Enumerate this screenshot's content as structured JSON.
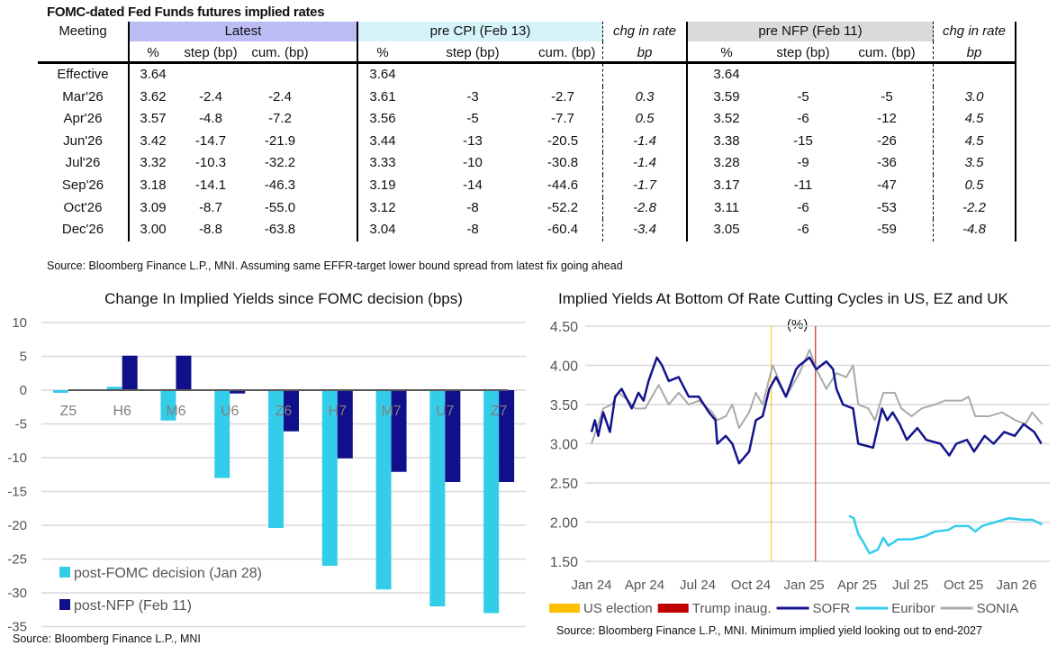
{
  "table": {
    "title": "FOMC-dated Fed Funds futures implied rates",
    "meeting_header": "Meeting",
    "group_latest": "Latest",
    "group_pre_cpi": "pre CPI (Feb 13)",
    "group_pre_nfp": "pre NFP (Feb 11)",
    "chg_header": "chg in rate",
    "chg_unit": "bp",
    "sub_pct": "%",
    "sub_step": "step (bp)",
    "sub_cum": "cum. (bp)",
    "rows": [
      {
        "meeting": "Effective",
        "l_pct": "3.64",
        "l_step": "",
        "l_cum": "",
        "c_pct": "3.64",
        "c_step": "",
        "c_cum": "",
        "c_chg": "",
        "n_pct": "3.64",
        "n_step": "",
        "n_cum": "",
        "n_chg": ""
      },
      {
        "meeting": "Mar'26",
        "l_pct": "3.62",
        "l_step": "-2.4",
        "l_cum": "-2.4",
        "c_pct": "3.61",
        "c_step": "-3",
        "c_cum": "-2.7",
        "c_chg": "0.3",
        "n_pct": "3.59",
        "n_step": "-5",
        "n_cum": "-5",
        "n_chg": "3.0"
      },
      {
        "meeting": "Apr'26",
        "l_pct": "3.57",
        "l_step": "-4.8",
        "l_cum": "-7.2",
        "c_pct": "3.56",
        "c_step": "-5",
        "c_cum": "-7.7",
        "c_chg": "0.5",
        "n_pct": "3.52",
        "n_step": "-6",
        "n_cum": "-12",
        "n_chg": "4.5"
      },
      {
        "meeting": "Jun'26",
        "l_pct": "3.42",
        "l_step": "-14.7",
        "l_cum": "-21.9",
        "c_pct": "3.44",
        "c_step": "-13",
        "c_cum": "-20.5",
        "c_chg": "-1.4",
        "n_pct": "3.38",
        "n_step": "-15",
        "n_cum": "-26",
        "n_chg": "4.5"
      },
      {
        "meeting": "Jul'26",
        "l_pct": "3.32",
        "l_step": "-10.3",
        "l_cum": "-32.2",
        "c_pct": "3.33",
        "c_step": "-10",
        "c_cum": "-30.8",
        "c_chg": "-1.4",
        "n_pct": "3.28",
        "n_step": "-9",
        "n_cum": "-36",
        "n_chg": "3.5"
      },
      {
        "meeting": "Sep'26",
        "l_pct": "3.18",
        "l_step": "-14.1",
        "l_cum": "-46.3",
        "c_pct": "3.19",
        "c_step": "-14",
        "c_cum": "-44.6",
        "c_chg": "-1.7",
        "n_pct": "3.17",
        "n_step": "-11",
        "n_cum": "-47",
        "n_chg": "0.5"
      },
      {
        "meeting": "Oct'26",
        "l_pct": "3.09",
        "l_step": "-8.7",
        "l_cum": "-55.0",
        "c_pct": "3.12",
        "c_step": "-8",
        "c_cum": "-52.2",
        "c_chg": "-2.8",
        "n_pct": "3.11",
        "n_step": "-6",
        "n_cum": "-53",
        "n_chg": "-2.2"
      },
      {
        "meeting": "Dec'26",
        "l_pct": "3.00",
        "l_step": "-8.8",
        "l_cum": "-63.8",
        "c_pct": "3.04",
        "c_step": "-8",
        "c_cum": "-60.4",
        "c_chg": "-3.4",
        "n_pct": "3.05",
        "n_step": "-6",
        "n_cum": "-59",
        "n_chg": "-4.8"
      }
    ],
    "source": "Source: Bloomberg Finance L.P., MNI. Assuming same  EFFR-target lower bound spread from latest fix going ahead",
    "colors": {
      "latest": "#bcbcf4",
      "pre_cpi": "#d5f3f9",
      "pre_nfp": "#dadada"
    }
  },
  "chart_data": [
    {
      "type": "bar",
      "title": "Change In Implied Yields since FOMC decision (bps)",
      "categories": [
        "Z5",
        "H6",
        "M6",
        "U6",
        "Z6",
        "H7",
        "M7",
        "U7",
        "Z7"
      ],
      "series": [
        {
          "name": "post-FOMC decision (Jan 28)",
          "color": "#33cdea",
          "values": [
            -0.4,
            0.5,
            -4.5,
            -13.0,
            -20.4,
            -26.0,
            -29.5,
            -32.0,
            -33.0
          ]
        },
        {
          "name": "post-NFP (Feb 11)",
          "color": "#10108a",
          "values": [
            0,
            5.1,
            5.1,
            -0.5,
            -6.1,
            -10.1,
            -12.1,
            -13.6,
            -13.6
          ]
        }
      ],
      "ylim": [
        -35,
        10
      ],
      "yticks": [
        10,
        5,
        0,
        -5,
        -10,
        -15,
        -20,
        -25,
        -30,
        -35
      ],
      "grid": true,
      "legend": "bottom-left",
      "source": "Source: Bloomberg Finance L.P., MNI"
    },
    {
      "type": "line",
      "title": "Implied Yields At Bottom Of Rate Cutting Cycles in US, EZ and UK",
      "subtitle": "(%)",
      "x_unit": "months since Jan 24",
      "xlim": [
        0,
        25.5
      ],
      "xticks": [
        {
          "m": 0,
          "label": "Jan 24"
        },
        {
          "m": 3,
          "label": "Apr 24"
        },
        {
          "m": 6,
          "label": "Jul 24"
        },
        {
          "m": 9,
          "label": "Oct 24"
        },
        {
          "m": 12,
          "label": "Jan 25"
        },
        {
          "m": 15,
          "label": "Apr 25"
        },
        {
          "m": 18,
          "label": "Jul 25"
        },
        {
          "m": 21,
          "label": "Oct 25"
        },
        {
          "m": 24,
          "label": "Jan 26"
        }
      ],
      "ylim": [
        1.5,
        4.5
      ],
      "yticks": [
        "4.50",
        "4.00",
        "3.50",
        "3.00",
        "2.50",
        "2.00",
        "1.50"
      ],
      "events": [
        {
          "name": "US election",
          "m": 10.15,
          "color": "#ffc000"
        },
        {
          "name": "Trump inaug.",
          "m": 12.65,
          "color": "#c00000"
        }
      ],
      "series": [
        {
          "name": "SOFR",
          "color": "#14148c",
          "points": [
            [
              0,
              3.15
            ],
            [
              0.19,
              3.3
            ],
            [
              0.38,
              3.1
            ],
            [
              0.66,
              3.4
            ],
            [
              1.04,
              3.15
            ],
            [
              1.33,
              3.6
            ],
            [
              1.7,
              3.7
            ],
            [
              2.27,
              3.45
            ],
            [
              2.65,
              3.65
            ],
            [
              2.94,
              3.55
            ],
            [
              3.22,
              3.8
            ],
            [
              3.69,
              4.1
            ],
            [
              3.98,
              4.0
            ],
            [
              4.36,
              3.8
            ],
            [
              4.92,
              3.85
            ],
            [
              5.49,
              3.6
            ],
            [
              6.06,
              3.6
            ],
            [
              6.63,
              3.4
            ],
            [
              7.0,
              3.3
            ],
            [
              7.1,
              3.0
            ],
            [
              7.58,
              3.1
            ],
            [
              7.95,
              3.0
            ],
            [
              8.33,
              2.75
            ],
            [
              8.9,
              2.9
            ],
            [
              9.28,
              3.3
            ],
            [
              9.66,
              3.35
            ],
            [
              10.04,
              3.7
            ],
            [
              10.42,
              3.85
            ],
            [
              10.98,
              3.6
            ],
            [
              11.55,
              3.95
            ],
            [
              11.74,
              4.0
            ],
            [
              12.31,
              4.1
            ],
            [
              12.69,
              3.95
            ],
            [
              13.26,
              4.05
            ],
            [
              13.64,
              3.95
            ],
            [
              13.83,
              3.7
            ],
            [
              14.2,
              3.5
            ],
            [
              14.77,
              3.45
            ],
            [
              15.06,
              3.0
            ],
            [
              15.9,
              2.95
            ],
            [
              16.4,
              3.45
            ],
            [
              16.7,
              3.3
            ],
            [
              17.0,
              3.4
            ],
            [
              17.4,
              3.25
            ],
            [
              17.8,
              3.05
            ],
            [
              18.4,
              3.2
            ],
            [
              18.9,
              3.05
            ],
            [
              19.7,
              3.0
            ],
            [
              20.2,
              2.85
            ],
            [
              20.6,
              3.0
            ],
            [
              21.2,
              3.05
            ],
            [
              21.6,
              2.9
            ],
            [
              22.2,
              3.1
            ],
            [
              22.7,
              3.0
            ],
            [
              23.3,
              3.15
            ],
            [
              23.9,
              3.1
            ],
            [
              24.4,
              3.25
            ],
            [
              25.0,
              3.15
            ],
            [
              25.4,
              3.0
            ]
          ]
        },
        {
          "name": "Euribor",
          "color": "#33ccee",
          "points": [
            [
              14.54,
              2.08
            ],
            [
              14.8,
              2.05
            ],
            [
              15.06,
              1.85
            ],
            [
              15.41,
              1.72
            ],
            [
              15.7,
              1.6
            ],
            [
              16.17,
              1.65
            ],
            [
              16.48,
              1.8
            ],
            [
              16.76,
              1.7
            ],
            [
              17.31,
              1.78
            ],
            [
              18.07,
              1.78
            ],
            [
              18.83,
              1.82
            ],
            [
              19.39,
              1.88
            ],
            [
              20.15,
              1.9
            ],
            [
              20.53,
              1.95
            ],
            [
              21.29,
              1.95
            ],
            [
              21.67,
              1.88
            ],
            [
              22.05,
              1.95
            ],
            [
              22.8,
              2.0
            ],
            [
              23.56,
              2.05
            ],
            [
              24.32,
              2.03
            ],
            [
              24.88,
              2.03
            ],
            [
              25.45,
              1.97
            ]
          ]
        },
        {
          "name": "SONIA",
          "color": "#aaaaaa",
          "points": [
            [
              0,
              3.0
            ],
            [
              0.38,
              3.25
            ],
            [
              0.66,
              3.45
            ],
            [
              1.14,
              3.5
            ],
            [
              1.52,
              3.65
            ],
            [
              2.08,
              3.55
            ],
            [
              2.46,
              3.45
            ],
            [
              3.03,
              3.45
            ],
            [
              3.79,
              3.75
            ],
            [
              4.36,
              3.5
            ],
            [
              4.92,
              3.65
            ],
            [
              5.49,
              3.5
            ],
            [
              6.06,
              3.55
            ],
            [
              6.82,
              3.4
            ],
            [
              7.1,
              3.3
            ],
            [
              7.58,
              3.35
            ],
            [
              7.95,
              3.5
            ],
            [
              8.33,
              3.2
            ],
            [
              8.9,
              3.4
            ],
            [
              9.28,
              3.65
            ],
            [
              9.66,
              3.5
            ],
            [
              10.23,
              4.0
            ],
            [
              10.98,
              3.6
            ],
            [
              11.74,
              3.9
            ],
            [
              12.31,
              4.2
            ],
            [
              12.69,
              3.95
            ],
            [
              13.26,
              3.7
            ],
            [
              13.83,
              3.9
            ],
            [
              14.39,
              3.85
            ],
            [
              14.77,
              4.0
            ],
            [
              15.06,
              3.5
            ],
            [
              15.63,
              3.45
            ],
            [
              16.0,
              3.3
            ],
            [
              16.48,
              3.65
            ],
            [
              17.12,
              3.65
            ],
            [
              17.5,
              3.45
            ],
            [
              18.07,
              3.35
            ],
            [
              18.64,
              3.45
            ],
            [
              19.39,
              3.5
            ],
            [
              19.96,
              3.55
            ],
            [
              20.91,
              3.55
            ],
            [
              21.29,
              3.6
            ],
            [
              21.67,
              3.35
            ],
            [
              22.43,
              3.35
            ],
            [
              23.18,
              3.4
            ],
            [
              23.94,
              3.3
            ],
            [
              24.5,
              3.25
            ],
            [
              24.88,
              3.4
            ],
            [
              25.45,
              3.25
            ]
          ]
        }
      ],
      "grid": true,
      "legend": "bottom",
      "source": "Source: Bloomberg Finance L.P., MNI. Minimum implied yield looking out to end-2027"
    }
  ]
}
